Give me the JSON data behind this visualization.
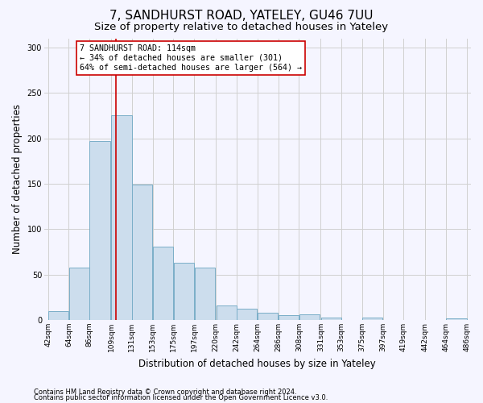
{
  "title": "7, SANDHURST ROAD, YATELEY, GU46 7UU",
  "subtitle": "Size of property relative to detached houses in Yateley",
  "xlabel": "Distribution of detached houses by size in Yateley",
  "ylabel": "Number of detached properties",
  "footer_line1": "Contains HM Land Registry data © Crown copyright and database right 2024.",
  "footer_line2": "Contains public sector information licensed under the Open Government Licence v3.0.",
  "bar_left_edges": [
    42,
    64,
    86,
    109,
    131,
    153,
    175,
    197,
    220,
    242,
    264,
    286,
    308,
    331,
    353,
    375,
    397,
    419,
    442,
    464
  ],
  "bar_widths": [
    22,
    22,
    22,
    22,
    22,
    22,
    22,
    22,
    22,
    22,
    22,
    22,
    22,
    22,
    22,
    22,
    22,
    22,
    22,
    22
  ],
  "bar_heights": [
    10,
    58,
    197,
    225,
    149,
    81,
    63,
    58,
    16,
    12,
    8,
    5,
    6,
    3,
    0,
    3,
    0,
    0,
    0,
    2
  ],
  "tick_labels": [
    "42sqm",
    "64sqm",
    "86sqm",
    "109sqm",
    "131sqm",
    "153sqm",
    "175sqm",
    "197sqm",
    "220sqm",
    "242sqm",
    "264sqm",
    "286sqm",
    "308sqm",
    "331sqm",
    "353sqm",
    "375sqm",
    "397sqm",
    "419sqm",
    "442sqm",
    "464sqm",
    "486sqm"
  ],
  "bar_facecolor": "#ccdded",
  "bar_edgecolor": "#7aaec8",
  "bar_linewidth": 0.7,
  "grid_color": "#d0d0d0",
  "background_color": "#f5f5ff",
  "property_size": 114,
  "red_line_color": "#cc0000",
  "annotation_text_line1": "7 SANDHURST ROAD: 114sqm",
  "annotation_text_line2": "← 34% of detached houses are smaller (301)",
  "annotation_text_line3": "64% of semi-detached houses are larger (564) →",
  "annotation_box_facecolor": "#ffffff",
  "annotation_box_edgecolor": "#cc0000",
  "ylim": [
    0,
    310
  ],
  "yticks": [
    0,
    50,
    100,
    150,
    200,
    250,
    300
  ],
  "title_fontsize": 11,
  "subtitle_fontsize": 9.5,
  "ylabel_fontsize": 8.5,
  "xlabel_fontsize": 8.5,
  "annotation_fontsize": 7.2,
  "tick_fontsize": 6.5,
  "footer_fontsize": 6.0
}
